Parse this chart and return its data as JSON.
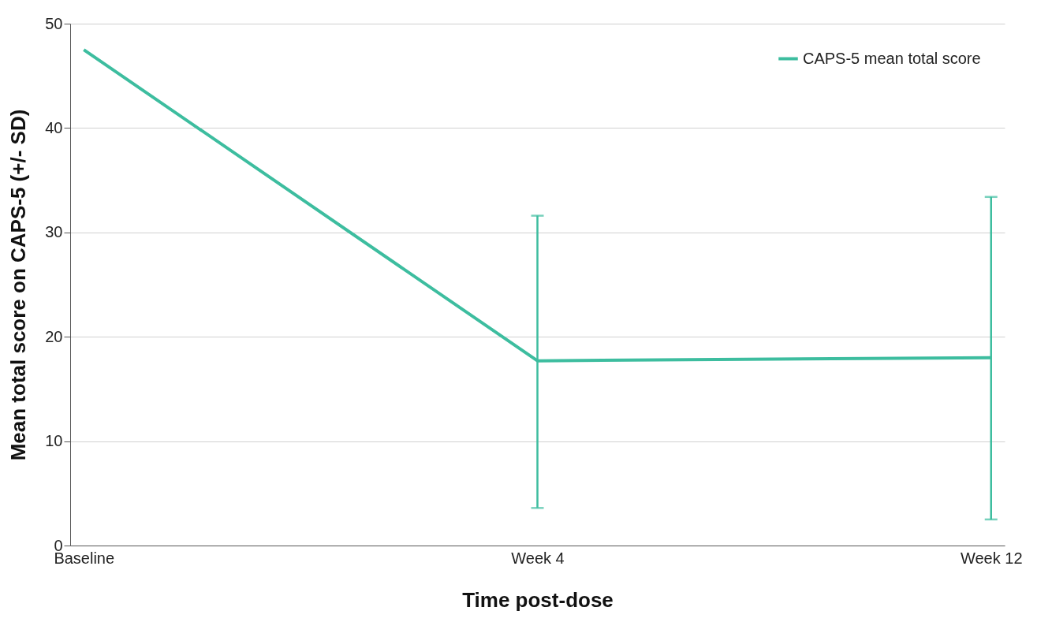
{
  "chart_data": {
    "type": "line",
    "xlabel": "Time post-dose",
    "ylabel": "Mean total score on CAPS-5 (+/- SD)",
    "categories": [
      "Baseline",
      "Week 4",
      "Week 12"
    ],
    "series": [
      {
        "name": "CAPS-5 mean total score",
        "color": "#3dbd9f",
        "values": [
          47.5,
          17.7,
          18.0
        ],
        "errors": [
          null,
          [
            3.6,
            31.6
          ],
          [
            2.5,
            33.4
          ]
        ]
      }
    ],
    "ylim": [
      0,
      50
    ],
    "yticks": [
      0,
      10,
      20,
      30,
      40,
      50
    ],
    "grid": "y",
    "legend": "top right",
    "marker": "none",
    "line_style": "solid"
  }
}
